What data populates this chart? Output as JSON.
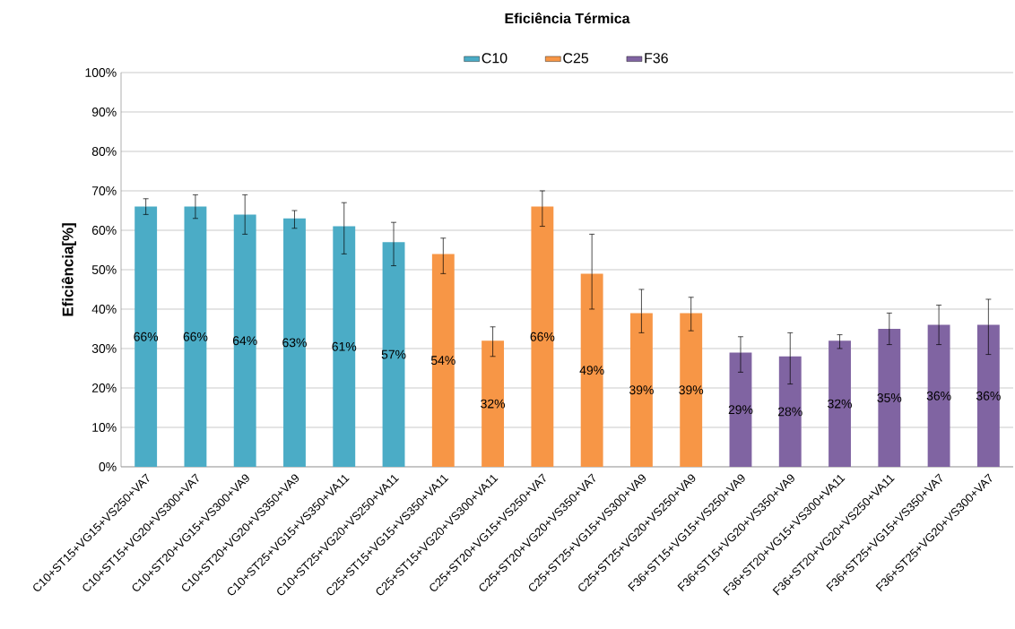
{
  "chart_data": {
    "type": "bar",
    "title": "Eficiência Térmica",
    "ylabel": "Eficiência[%]",
    "categories": [
      "C10+ST15+VG15+VS250+VA7",
      "C10+ST15+VG20+VS300+VA7",
      "C10+ST20+VG15+VS300+VA9",
      "C10+ST20+VG20+VS350+VA9",
      "C10+ST25+VG15+VS350+VA11",
      "C10+ST25+VG20+VS250+VA11",
      "C25+ST15+VG15+VS350+VA11",
      "C25+ST15+VG20+VS300+VA11",
      "C25+ST20+VG15+VS250+VA7",
      "C25+ST20+VG20+VS350+VA7",
      "C25+ST25+VG15+VS300+VA9",
      "C25+ST25+VG20+VS250+VA9",
      "F36+ST15+VG15+VS250+VA9",
      "F36+ST15+VG20+VS350+VA9",
      "F36+ST20+VG15+VS300+VA11",
      "F36+ST20+VG20+VS250+VA11",
      "F36+ST25+VG15+VS350+VA7",
      "F36+ST25+VG20+VS300+VA7"
    ],
    "series": [
      {
        "name": "C10",
        "color": "#4bacc6",
        "values": [
          66,
          66,
          64,
          63,
          61,
          57,
          null,
          null,
          null,
          null,
          null,
          null,
          null,
          null,
          null,
          null,
          null,
          null
        ],
        "errors": [
          [
            64,
            68
          ],
          [
            63,
            69
          ],
          [
            59,
            69
          ],
          [
            60.5,
            65
          ],
          [
            54,
            67
          ],
          [
            51,
            62
          ],
          null,
          null,
          null,
          null,
          null,
          null,
          null,
          null,
          null,
          null,
          null,
          null
        ],
        "value_labels": [
          "66%",
          "66%",
          "64%",
          "63%",
          "61%",
          "57%",
          null,
          null,
          null,
          null,
          null,
          null,
          null,
          null,
          null,
          null,
          null,
          null
        ]
      },
      {
        "name": "C25",
        "color": "#f79646",
        "values": [
          null,
          null,
          null,
          null,
          null,
          null,
          54,
          32,
          66,
          49,
          39,
          39,
          null,
          null,
          null,
          null,
          null,
          null
        ],
        "errors": [
          null,
          null,
          null,
          null,
          null,
          null,
          [
            49,
            58
          ],
          [
            28,
            35.5
          ],
          [
            61,
            70
          ],
          [
            40,
            59
          ],
          [
            34,
            45
          ],
          [
            34.5,
            43
          ],
          null,
          null,
          null,
          null,
          null,
          null
        ],
        "value_labels": [
          null,
          null,
          null,
          null,
          null,
          null,
          "54%",
          "32%",
          "66%",
          "49%",
          "39%",
          "39%",
          null,
          null,
          null,
          null,
          null,
          null
        ]
      },
      {
        "name": "F36",
        "color": "#8064a2",
        "values": [
          null,
          null,
          null,
          null,
          null,
          null,
          null,
          null,
          null,
          null,
          null,
          null,
          29,
          28,
          32,
          35,
          36,
          36
        ],
        "errors": [
          null,
          null,
          null,
          null,
          null,
          null,
          null,
          null,
          null,
          null,
          null,
          null,
          [
            24,
            33
          ],
          [
            21,
            34
          ],
          [
            30,
            33.5
          ],
          [
            31,
            39
          ],
          [
            31,
            41
          ],
          [
            28.5,
            42.5
          ]
        ],
        "value_labels": [
          null,
          null,
          null,
          null,
          null,
          null,
          null,
          null,
          null,
          null,
          null,
          null,
          "29%",
          "28%",
          "32%",
          "35%",
          "36%",
          "36%"
        ]
      }
    ],
    "ylim": [
      0,
      100
    ],
    "yticks": [
      {
        "value": 0,
        "label": "0%"
      },
      {
        "value": 10,
        "label": "10%"
      },
      {
        "value": 20,
        "label": "20%"
      },
      {
        "value": 30,
        "label": "30%"
      },
      {
        "value": 40,
        "label": "40%"
      },
      {
        "value": 50,
        "label": "50%"
      },
      {
        "value": 60,
        "label": "60%"
      },
      {
        "value": 70,
        "label": "70%"
      },
      {
        "value": 80,
        "label": "80%"
      },
      {
        "value": 90,
        "label": "90%"
      },
      {
        "value": 100,
        "label": "100%"
      }
    ],
    "grid": "y",
    "legend": "top"
  }
}
